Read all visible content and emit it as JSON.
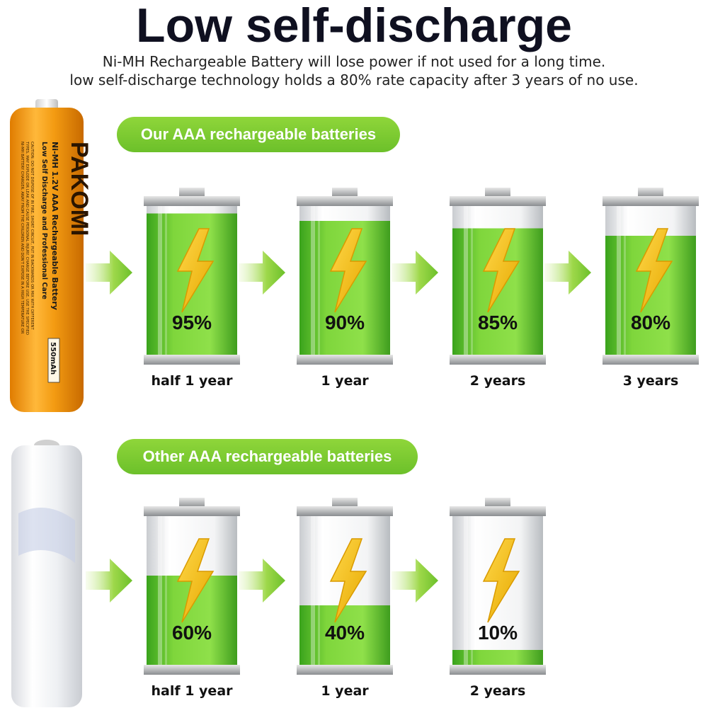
{
  "header": {
    "title": "Low self-discharge",
    "line1": "Ni-MH Rechargeable Battery will lose power if not used for a long time.",
    "line2": "low self-discharge technology holds a 80% rate capacity after 3 years of no use."
  },
  "ours": {
    "label": "Our AAA rechargeable batteries",
    "product": {
      "brand": "PAKOMI",
      "line1": "Ni-MH  1.2V  AAA  Rechargeable  Battery",
      "line2": "Low Self Discharge and Professional Care",
      "capacity": "550mAh",
      "warning1": "CAUTION: DO NOT DISPOSE OF IN FIRE. SHORT CIRCUIT, PUT IN BACKWARDS OR MIX WITH DIFFERENT",
      "warning2": "TYPES. MAY EXPLODE OR LEAK AND CAUSE PERSONAL INJURY. CHARGE BEFORE USE. USE THE SPECIFIED",
      "warning3": "NI-MH BATTERY CHARGER. AWAY FROM THE CHILDREN AND DON'T EXPOSE IN A HIGH TEMPERATURE OR"
    },
    "cells": [
      {
        "percent": "95%",
        "level": 0.95,
        "period": "half 1 year"
      },
      {
        "percent": "90%",
        "level": 0.9,
        "period": "1 year"
      },
      {
        "percent": "85%",
        "level": 0.85,
        "period": "2 years"
      },
      {
        "percent": "80%",
        "level": 0.8,
        "period": "3 years"
      }
    ]
  },
  "others": {
    "label": "Other AAA rechargeable batteries",
    "cells": [
      {
        "percent": "60%",
        "level": 0.6,
        "period": "half 1 year"
      },
      {
        "percent": "40%",
        "level": 0.4,
        "period": "1 year"
      },
      {
        "percent": "10%",
        "level": 0.1,
        "period": "2 years"
      }
    ]
  },
  "colors": {
    "accent_green": "#7cc832",
    "bolt_yellow": "#f6c21e",
    "title_color": "#0f1020",
    "product_orange": "#f39b12"
  },
  "icons": [
    "arrow-right-icon",
    "lightning-bolt-icon"
  ]
}
